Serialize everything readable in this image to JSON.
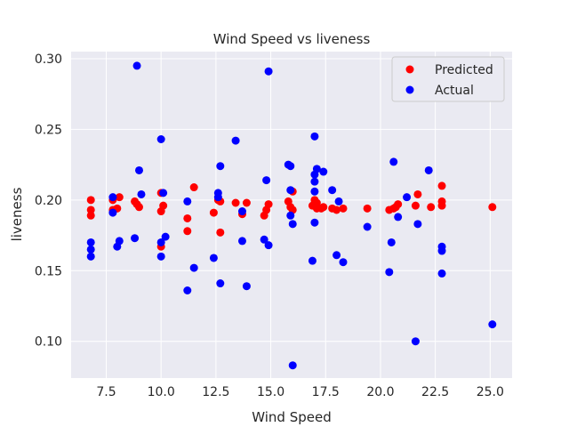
{
  "chart_data": {
    "type": "scatter",
    "title": "Wind Speed vs liveness",
    "xlabel": "Wind Speed",
    "ylabel": "liveness",
    "xlim": [
      5.9,
      26.0
    ],
    "ylim": [
      0.074,
      0.305
    ],
    "xticks": [
      "7.5",
      "10.0",
      "12.5",
      "15.0",
      "17.5",
      "20.0",
      "22.5",
      "25.0"
    ],
    "xtick_values": [
      7.5,
      10.0,
      12.5,
      15.0,
      17.5,
      20.0,
      22.5,
      25.0
    ],
    "yticks": [
      "0.10",
      "0.15",
      "0.20",
      "0.25",
      "0.30"
    ],
    "ytick_values": [
      0.1,
      0.15,
      0.2,
      0.25,
      0.3
    ],
    "grid": true,
    "legend_position": "top-right",
    "background": "#eaeaf2",
    "series": [
      {
        "name": "Predicted",
        "color": "#ff0000",
        "points": [
          [
            6.8,
            0.2
          ],
          [
            6.8,
            0.193
          ],
          [
            6.8,
            0.189
          ],
          [
            7.8,
            0.2
          ],
          [
            7.8,
            0.193
          ],
          [
            8.0,
            0.194
          ],
          [
            8.1,
            0.202
          ],
          [
            8.8,
            0.199
          ],
          [
            8.9,
            0.197
          ],
          [
            9.0,
            0.195
          ],
          [
            10.0,
            0.205
          ],
          [
            10.0,
            0.192
          ],
          [
            10.0,
            0.167
          ],
          [
            10.1,
            0.196
          ],
          [
            11.2,
            0.187
          ],
          [
            11.2,
            0.178
          ],
          [
            11.5,
            0.209
          ],
          [
            12.4,
            0.191
          ],
          [
            12.6,
            0.2
          ],
          [
            12.7,
            0.199
          ],
          [
            12.7,
            0.177
          ],
          [
            13.4,
            0.198
          ],
          [
            13.7,
            0.19
          ],
          [
            13.9,
            0.198
          ],
          [
            14.7,
            0.189
          ],
          [
            14.8,
            0.193
          ],
          [
            14.9,
            0.197
          ],
          [
            15.8,
            0.199
          ],
          [
            15.9,
            0.195
          ],
          [
            16.0,
            0.206
          ],
          [
            16.0,
            0.193
          ],
          [
            16.9,
            0.196
          ],
          [
            17.0,
            0.2
          ],
          [
            17.1,
            0.198
          ],
          [
            17.1,
            0.194
          ],
          [
            17.3,
            0.194
          ],
          [
            17.4,
            0.195
          ],
          [
            17.8,
            0.194
          ],
          [
            18.0,
            0.193
          ],
          [
            18.3,
            0.194
          ],
          [
            19.4,
            0.194
          ],
          [
            20.4,
            0.193
          ],
          [
            20.6,
            0.194
          ],
          [
            20.7,
            0.195
          ],
          [
            20.8,
            0.197
          ],
          [
            21.6,
            0.196
          ],
          [
            21.7,
            0.204
          ],
          [
            22.3,
            0.195
          ],
          [
            22.8,
            0.21
          ],
          [
            22.8,
            0.199
          ],
          [
            22.8,
            0.196
          ],
          [
            25.1,
            0.195
          ]
        ]
      },
      {
        "name": "Actual",
        "color": "#0000ff",
        "points": [
          [
            6.8,
            0.17
          ],
          [
            6.8,
            0.165
          ],
          [
            6.8,
            0.16
          ],
          [
            7.8,
            0.202
          ],
          [
            7.8,
            0.191
          ],
          [
            8.0,
            0.167
          ],
          [
            8.1,
            0.171
          ],
          [
            8.8,
            0.173
          ],
          [
            8.9,
            0.295
          ],
          [
            9.0,
            0.221
          ],
          [
            9.1,
            0.204
          ],
          [
            10.0,
            0.243
          ],
          [
            10.0,
            0.17
          ],
          [
            10.0,
            0.16
          ],
          [
            10.1,
            0.205
          ],
          [
            10.2,
            0.174
          ],
          [
            11.2,
            0.199
          ],
          [
            11.2,
            0.136
          ],
          [
            11.5,
            0.152
          ],
          [
            12.4,
            0.159
          ],
          [
            12.6,
            0.205
          ],
          [
            12.6,
            0.202
          ],
          [
            12.7,
            0.224
          ],
          [
            12.7,
            0.141
          ],
          [
            13.4,
            0.242
          ],
          [
            13.7,
            0.192
          ],
          [
            13.7,
            0.171
          ],
          [
            13.9,
            0.139
          ],
          [
            14.7,
            0.172
          ],
          [
            14.8,
            0.214
          ],
          [
            14.9,
            0.168
          ],
          [
            14.9,
            0.291
          ],
          [
            15.8,
            0.225
          ],
          [
            15.9,
            0.224
          ],
          [
            15.9,
            0.207
          ],
          [
            15.9,
            0.189
          ],
          [
            16.0,
            0.183
          ],
          [
            16.0,
            0.083
          ],
          [
            16.9,
            0.157
          ],
          [
            17.0,
            0.245
          ],
          [
            17.0,
            0.218
          ],
          [
            17.0,
            0.213
          ],
          [
            17.0,
            0.206
          ],
          [
            17.0,
            0.184
          ],
          [
            17.1,
            0.222
          ],
          [
            17.4,
            0.22
          ],
          [
            17.8,
            0.207
          ],
          [
            18.0,
            0.161
          ],
          [
            18.1,
            0.199
          ],
          [
            18.3,
            0.156
          ],
          [
            19.4,
            0.181
          ],
          [
            20.4,
            0.149
          ],
          [
            20.5,
            0.17
          ],
          [
            20.6,
            0.227
          ],
          [
            20.8,
            0.188
          ],
          [
            21.2,
            0.202
          ],
          [
            21.6,
            0.1
          ],
          [
            21.7,
            0.183
          ],
          [
            22.2,
            0.221
          ],
          [
            22.8,
            0.167
          ],
          [
            22.8,
            0.164
          ],
          [
            22.8,
            0.148
          ],
          [
            25.1,
            0.112
          ]
        ]
      }
    ]
  }
}
